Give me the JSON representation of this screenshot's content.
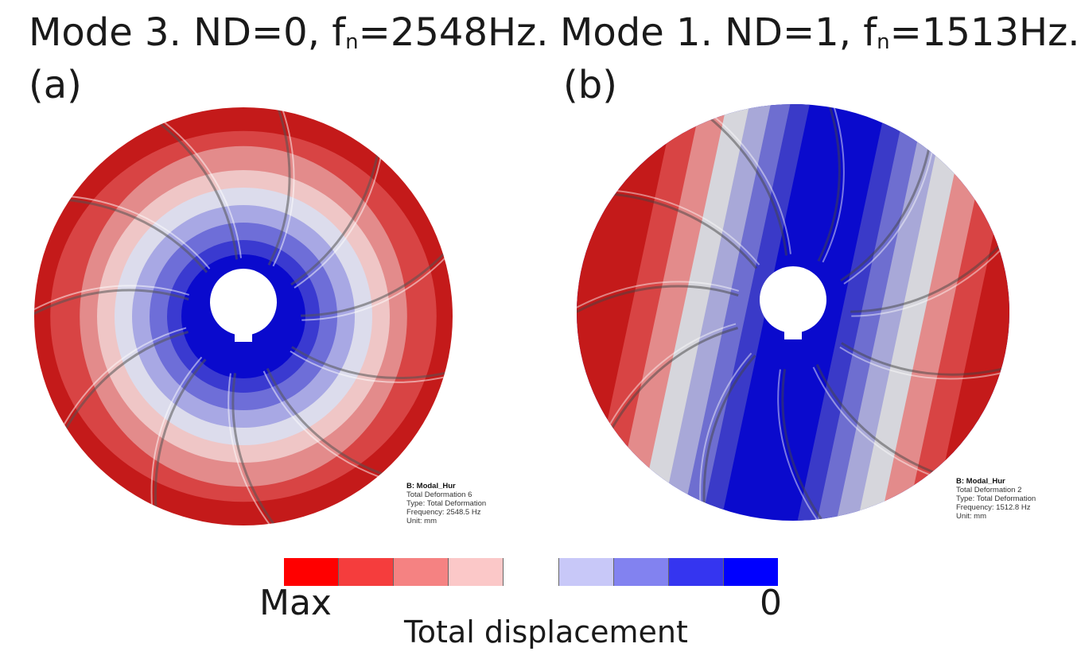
{
  "panels": [
    {
      "title_pre": "Mode 3. ND=0, f",
      "title_sub": "n",
      "title_post": "=2548Hz.",
      "letter": "(a)",
      "info": {
        "line1": "B: Modal_Hur",
        "line2": "Total Deformation 6",
        "line3": "Type: Total Deformation",
        "line4": "Frequency: 2548.5 Hz",
        "line5": "Unit: mm"
      }
    },
    {
      "title_pre": "Mode 1. ND=1, f",
      "title_sub": "n",
      "title_post": "=1513Hz.",
      "letter": "(b)",
      "info": {
        "line1": "B: Modal_Hur",
        "line2": "Total Deformation 2",
        "line3": "Type: Total Deformation",
        "line4": "Frequency: 1512.8 Hz",
        "line5": "Unit: mm"
      }
    }
  ],
  "legend": {
    "min_label": "Max",
    "max_label": "0",
    "title": "Total displacement",
    "colors": [
      "#ff0000",
      "#f53d3d",
      "#f58282",
      "#fbc8c8",
      "#ffffff",
      "#c8c8f8",
      "#8282f0",
      "#3535f0",
      "#0000ff"
    ]
  }
}
